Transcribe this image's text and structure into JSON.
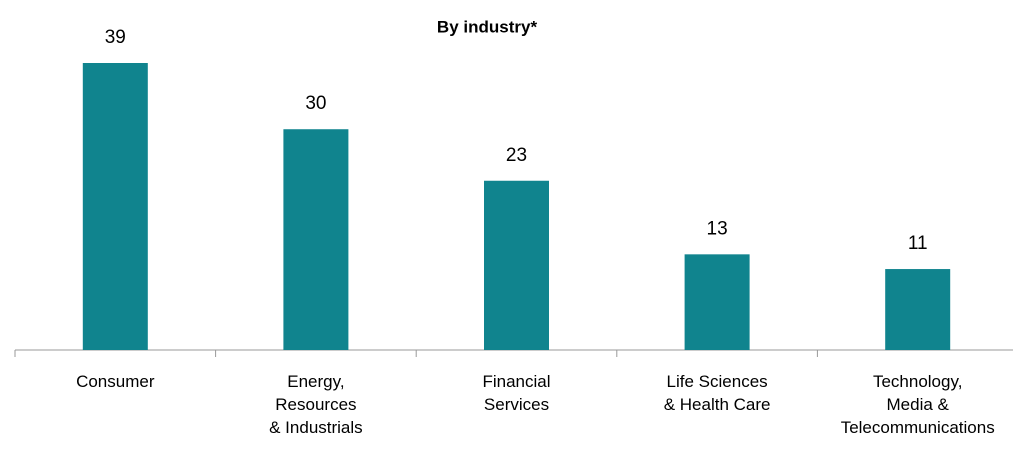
{
  "chart_data": {
    "type": "bar",
    "title": "By industry*",
    "categories": [
      [
        "Consumer"
      ],
      [
        "Energy,",
        "Resources",
        "& Industrials"
      ],
      [
        "Financial",
        "Services"
      ],
      [
        "Life Sciences",
        "& Health Care"
      ],
      [
        "Technology,",
        "Media &",
        "Telecommunications"
      ]
    ],
    "values": [
      39,
      30,
      23,
      13,
      11
    ],
    "color": "#10848e"
  }
}
